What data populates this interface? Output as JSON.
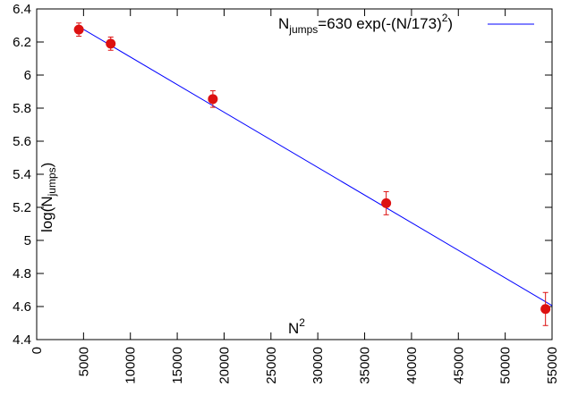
{
  "chart_data": {
    "type": "scatter",
    "x_axis": {
      "label_base": "N",
      "label_sup": "2",
      "xlim": [
        0,
        55000
      ],
      "ticks": [
        "0",
        "5000",
        "10000",
        "15000",
        "20000",
        "25000",
        "30000",
        "35000",
        "40000",
        "45000",
        "50000",
        "55000"
      ]
    },
    "y_axis": {
      "label_base": "log(N",
      "label_sub": "jumps",
      "label_end": ")",
      "ylim": [
        4.4,
        6.4
      ],
      "ticks": [
        "4.4",
        "4.6",
        "4.8",
        "5",
        "5.2",
        "5.4",
        "5.6",
        "5.8",
        "6",
        "6.2",
        "6.4"
      ]
    },
    "points": [
      {
        "x": 4500,
        "y": 6.275,
        "err": 0.04
      },
      {
        "x": 7900,
        "y": 6.19,
        "err": 0.04
      },
      {
        "x": 18800,
        "y": 5.855,
        "err": 0.05
      },
      {
        "x": 37300,
        "y": 5.225,
        "err": 0.07
      },
      {
        "x": 54300,
        "y": 4.585,
        "err": 0.1
      }
    ],
    "fit_line": {
      "label_base": "N",
      "label_sub": "jumps",
      "label_mid": "=630 exp(-(N/173)",
      "label_sup": "2",
      "label_end": ")",
      "color": "#0000ff",
      "x": [
        4500,
        55000
      ],
      "y": [
        6.293,
        4.606
      ]
    },
    "point_color": "#dd1111",
    "errorbar_color": "#dd1111",
    "grid": false,
    "legend_position": "top-right"
  }
}
